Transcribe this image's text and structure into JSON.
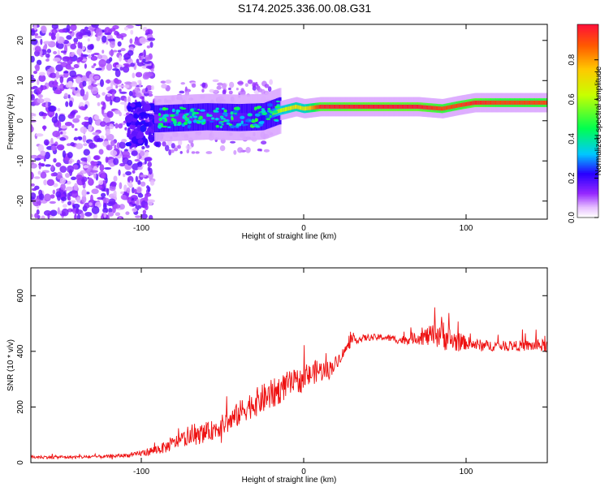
{
  "title": "S174.2025.336.00.08.G31",
  "chart_data": [
    {
      "type": "heatmap",
      "title": "S174.2025.336.00.08.G31",
      "xlabel": "Height of straight line (km)",
      "ylabel": "Frequency (Hz)",
      "xlim": [
        -168,
        150
      ],
      "ylim": [
        -24.5,
        24
      ],
      "xticks": [
        -100,
        0,
        100
      ],
      "yticks": [
        -20,
        -10,
        0,
        10,
        20
      ],
      "xtick_labels": [
        "-100",
        "0",
        "100"
      ],
      "ytick_labels": [
        "-20",
        "-10",
        "0",
        "10",
        "20"
      ],
      "colorbar": {
        "label": "Normalized spectral amplitude",
        "range": [
          0,
          1
        ],
        "ticks": [
          0.0,
          0.2,
          0.4,
          0.6,
          0.8
        ],
        "tick_labels": [
          "0.0",
          "0.2",
          "0.4",
          "0.6",
          "0.8"
        ]
      },
      "ridge": {
        "description_points_x": [
          -90,
          -60,
          -40,
          -25,
          -15,
          -5,
          0,
          10,
          40,
          70,
          85,
          95,
          105,
          120,
          150
        ],
        "frequency_hz": [
          0.5,
          1.0,
          0.8,
          1.0,
          2.5,
          3.5,
          3.0,
          3.5,
          3.5,
          3.5,
          3.0,
          3.8,
          4.5,
          4.5,
          4.5
        ],
        "normalized_amplitude": [
          0.25,
          0.3,
          0.3,
          0.4,
          0.6,
          0.7,
          0.65,
          0.95,
          0.97,
          0.97,
          0.9,
          0.9,
          0.95,
          0.9,
          0.9
        ]
      }
    },
    {
      "type": "line",
      "xlabel": "Height of straight line (km)",
      "ylabel": "SNR (10 * v/v)",
      "xlim": [
        -168,
        150
      ],
      "ylim": [
        0,
        700
      ],
      "xticks": [
        -100,
        0,
        100
      ],
      "yticks": [
        0,
        200,
        400,
        600
      ],
      "xtick_labels": [
        "-100",
        "0",
        "100"
      ],
      "ytick_labels": [
        "0",
        "200",
        "400",
        "600"
      ],
      "series": [
        {
          "name": "SNR",
          "color": "#ee1111",
          "x": [
            -168,
            -140,
            -120,
            -105,
            -95,
            -85,
            -75,
            -65,
            -55,
            -45,
            -35,
            -25,
            -18,
            -10,
            0,
            8,
            15,
            20,
            25,
            30,
            40,
            50,
            60,
            70,
            80,
            85,
            90,
            100,
            110,
            120,
            130,
            140,
            150
          ],
          "y": [
            20,
            20,
            22,
            28,
            40,
            55,
            85,
            95,
            120,
            150,
            200,
            230,
            250,
            280,
            300,
            330,
            330,
            360,
            400,
            440,
            450,
            450,
            440,
            450,
            455,
            470,
            440,
            430,
            420,
            420,
            420,
            420,
            420
          ],
          "noise": [
            10,
            10,
            10,
            12,
            25,
            35,
            45,
            50,
            60,
            70,
            80,
            90,
            90,
            80,
            70,
            70,
            60,
            40,
            30,
            25,
            20,
            20,
            25,
            40,
            70,
            100,
            80,
            40,
            35,
            30,
            30,
            35,
            40
          ]
        }
      ]
    }
  ]
}
